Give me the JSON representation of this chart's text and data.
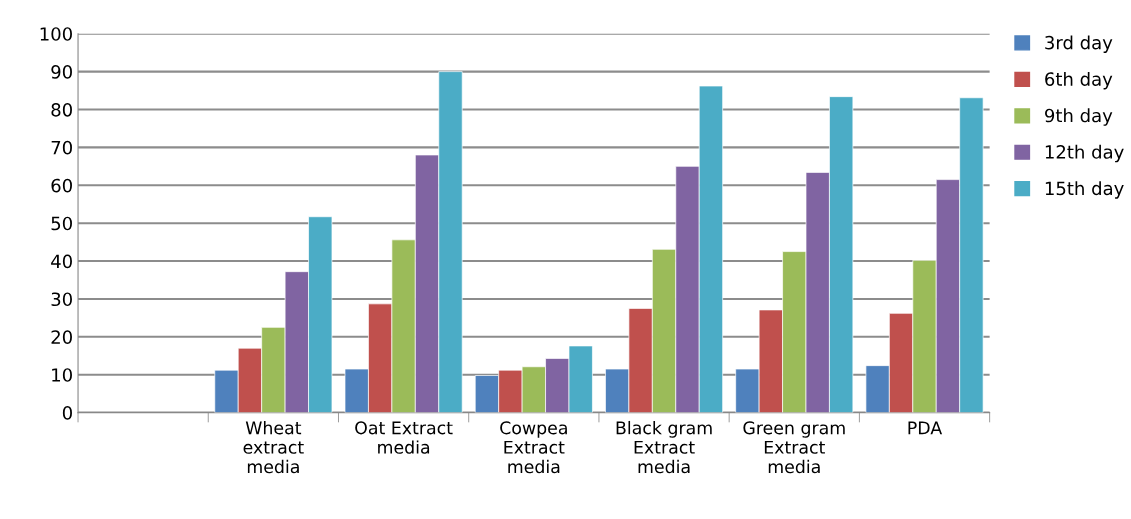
{
  "chart_data": {
    "type": "bar",
    "categories": [
      null,
      "Wheat\nextract\nmedia",
      "Oat Extract\nmedia",
      "Cowpea\nExtract\nmedia",
      "Black gram\nExtract\nmedia",
      "Green gram\nExtract\nmedia",
      "PDA"
    ],
    "series": [
      {
        "name": "3rd day",
        "color": "#4f81bd",
        "values": [
          null,
          11.2,
          11.5,
          9.8,
          11.5,
          11.5,
          12.4
        ]
      },
      {
        "name": "6th day",
        "color": "#c0504d",
        "values": [
          null,
          17,
          28.7,
          11.2,
          27.5,
          27.1,
          26.2
        ]
      },
      {
        "name": "9th day",
        "color": "#9bbb59",
        "values": [
          null,
          22.5,
          45.6,
          12.1,
          43.1,
          42.5,
          40.2
        ]
      },
      {
        "name": "12th day",
        "color": "#8064a2",
        "values": [
          null,
          37.2,
          68,
          14.3,
          65,
          63.4,
          61.5
        ]
      },
      {
        "name": "15th day",
        "color": "#4bacc6",
        "values": [
          null,
          51.7,
          90,
          17.6,
          86.2,
          83.4,
          83.1
        ]
      }
    ],
    "ylim": [
      0,
      100
    ],
    "yticks": [
      0,
      10,
      20,
      30,
      40,
      50,
      60,
      70,
      80,
      90,
      100
    ],
    "grid": "y",
    "legend": "right"
  }
}
